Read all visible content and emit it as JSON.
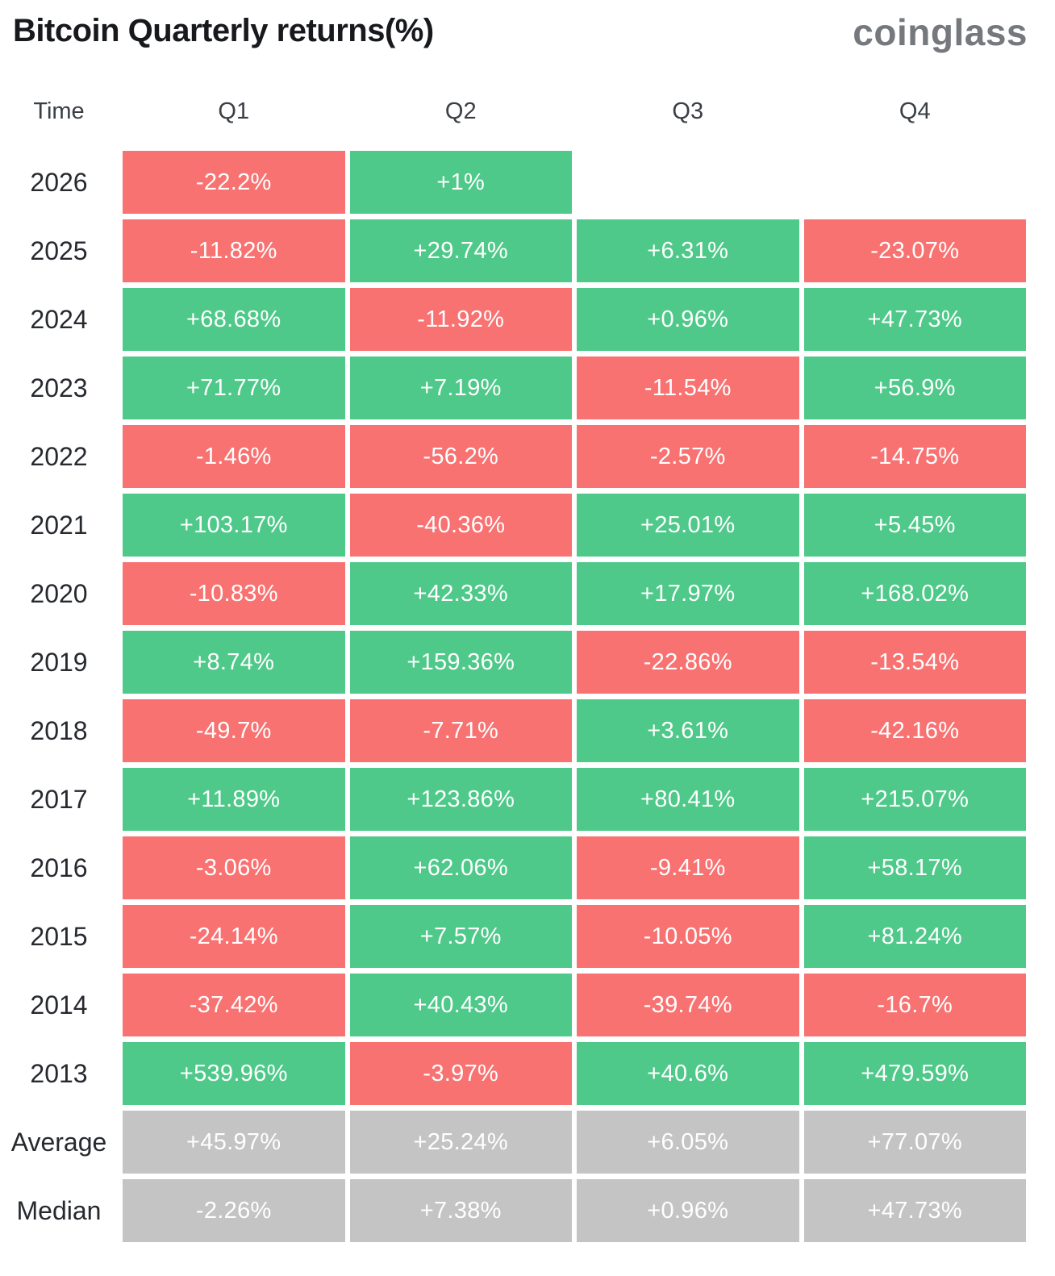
{
  "title": "Bitcoin Quarterly returns(%)",
  "logo_text": "coinglass",
  "colors": {
    "positive": "#4FC98A",
    "negative": "#F87272",
    "neutral": "#C4C4C4"
  },
  "chart_data": {
    "type": "heatmap",
    "title": "Bitcoin Quarterly returns(%)",
    "columns": [
      "Time",
      "Q1",
      "Q2",
      "Q3",
      "Q4"
    ],
    "value_unit": "percent",
    "color_rule": "green = positive return, red = negative return, gray = summary rows",
    "rows": [
      {
        "label": "2026",
        "kind": "year",
        "values": [
          "-22.2%",
          "+1%",
          "",
          ""
        ]
      },
      {
        "label": "2025",
        "kind": "year",
        "values": [
          "-11.82%",
          "+29.74%",
          "+6.31%",
          "-23.07%"
        ]
      },
      {
        "label": "2024",
        "kind": "year",
        "values": [
          "+68.68%",
          "-11.92%",
          "+0.96%",
          "+47.73%"
        ]
      },
      {
        "label": "2023",
        "kind": "year",
        "values": [
          "+71.77%",
          "+7.19%",
          "-11.54%",
          "+56.9%"
        ]
      },
      {
        "label": "2022",
        "kind": "year",
        "values": [
          "-1.46%",
          "-56.2%",
          "-2.57%",
          "-14.75%"
        ]
      },
      {
        "label": "2021",
        "kind": "year",
        "values": [
          "+103.17%",
          "-40.36%",
          "+25.01%",
          "+5.45%"
        ]
      },
      {
        "label": "2020",
        "kind": "year",
        "values": [
          "-10.83%",
          "+42.33%",
          "+17.97%",
          "+168.02%"
        ]
      },
      {
        "label": "2019",
        "kind": "year",
        "values": [
          "+8.74%",
          "+159.36%",
          "-22.86%",
          "-13.54%"
        ]
      },
      {
        "label": "2018",
        "kind": "year",
        "values": [
          "-49.7%",
          "-7.71%",
          "+3.61%",
          "-42.16%"
        ]
      },
      {
        "label": "2017",
        "kind": "year",
        "values": [
          "+11.89%",
          "+123.86%",
          "+80.41%",
          "+215.07%"
        ]
      },
      {
        "label": "2016",
        "kind": "year",
        "values": [
          "-3.06%",
          "+62.06%",
          "-9.41%",
          "+58.17%"
        ]
      },
      {
        "label": "2015",
        "kind": "year",
        "values": [
          "-24.14%",
          "+7.57%",
          "-10.05%",
          "+81.24%"
        ]
      },
      {
        "label": "2014",
        "kind": "year",
        "values": [
          "-37.42%",
          "+40.43%",
          "-39.74%",
          "-16.7%"
        ]
      },
      {
        "label": "2013",
        "kind": "year",
        "values": [
          "+539.96%",
          "-3.97%",
          "+40.6%",
          "+479.59%"
        ]
      },
      {
        "label": "Average",
        "kind": "summary",
        "values": [
          "+45.97%",
          "+25.24%",
          "+6.05%",
          "+77.07%"
        ]
      },
      {
        "label": "Median",
        "kind": "summary",
        "values": [
          "-2.26%",
          "+7.38%",
          "+0.96%",
          "+47.73%"
        ]
      }
    ]
  }
}
